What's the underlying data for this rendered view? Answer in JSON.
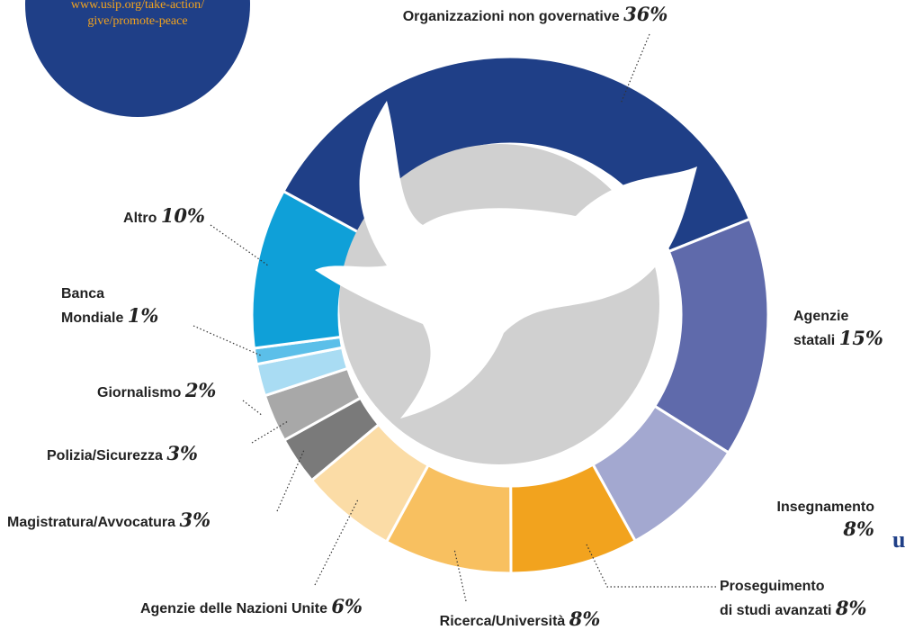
{
  "badge": {
    "lines": [
      "www.usip.org/take-action/",
      "give/promote-peace"
    ]
  },
  "logo_fragment": "u",
  "chart_data": {
    "type": "donut",
    "categories": [
      "Organizzazioni non governative",
      "Agenzie\nstatali",
      "Insegnamento",
      "Proseguimento\ndi studi avanzati",
      "Ricerca/Università",
      "Agenzie delle Nazioni Unite",
      "Magistratura/Avvocatura",
      "Polizia/Sicurezza",
      "Giornalismo",
      "Banca\nMondiale",
      "Altro"
    ],
    "values": [
      36,
      15,
      8,
      8,
      8,
      6,
      3,
      3,
      2,
      1,
      10
    ],
    "value_labels": [
      "36%",
      "15%",
      "8%",
      "8%",
      "8%",
      "6%",
      "3%",
      "3%",
      "2%",
      "1%",
      "10%"
    ],
    "colors": [
      "#1f3f87",
      "#5f6aab",
      "#a3a8d0",
      "#f2a31e",
      "#f8c060",
      "#fbdca6",
      "#7a7a7a",
      "#a8a8a8",
      "#a9dcf3",
      "#5bbfe9",
      "#0fa0d8"
    ]
  }
}
